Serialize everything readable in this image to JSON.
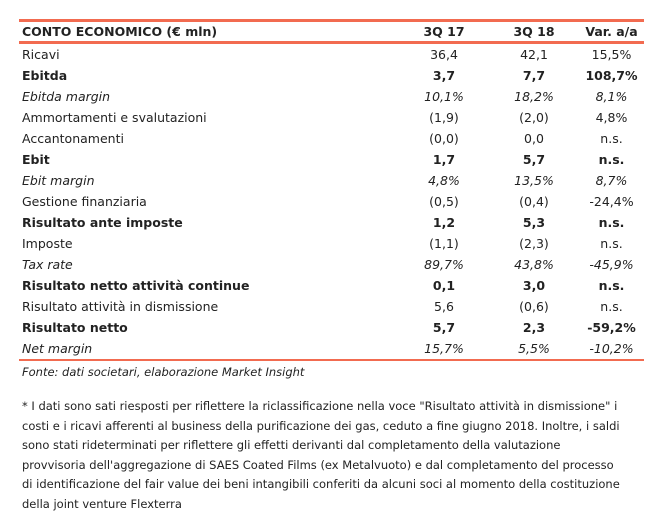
{
  "table": {
    "headers": [
      "CONTO ECONOMICO (€ mln)",
      "3Q 17",
      "3Q 18",
      "Var. a/a"
    ],
    "rows": [
      {
        "label": "Ricavi",
        "v1": "36,4",
        "v2": "42,1",
        "var": "15,5%",
        "style": "normal"
      },
      {
        "label": "Ebitda",
        "v1": "3,7",
        "v2": "7,7",
        "var": "108,7%",
        "style": "bold"
      },
      {
        "label": "Ebitda margin",
        "v1": "10,1%",
        "v2": "18,2%",
        "var": "8,1%",
        "style": "italic"
      },
      {
        "label": "Ammortamenti e svalutazioni",
        "v1": "(1,9)",
        "v2": "(2,0)",
        "var": "4,8%",
        "style": "normal"
      },
      {
        "label": "Accantonamenti",
        "v1": "(0,0)",
        "v2": "0,0",
        "var": "n.s.",
        "style": "normal"
      },
      {
        "label": "Ebit",
        "v1": "1,7",
        "v2": "5,7",
        "var": "n.s.",
        "style": "bold"
      },
      {
        "label": "Ebit margin",
        "v1": "4,8%",
        "v2": "13,5%",
        "var": "8,7%",
        "style": "italic"
      },
      {
        "label": "Gestione finanziaria",
        "v1": "(0,5)",
        "v2": "(0,4)",
        "var": "-24,4%",
        "style": "normal"
      },
      {
        "label": "Risultato ante imposte",
        "v1": "1,2",
        "v2": "5,3",
        "var": "n.s.",
        "style": "bold"
      },
      {
        "label": "Imposte",
        "v1": "(1,1)",
        "v2": "(2,3)",
        "var": "n.s.",
        "style": "normal"
      },
      {
        "label": "Tax rate",
        "v1": "89,7%",
        "v2": "43,8%",
        "var": "-45,9%",
        "style": "italic"
      },
      {
        "label": "Risultato netto attività continue",
        "v1": "0,1",
        "v2": "3,0",
        "var": "n.s.",
        "style": "bold"
      },
      {
        "label": "Risultato attività in dismissione",
        "v1": "5,6",
        "v2": "(0,6)",
        "var": "n.s.",
        "style": "normal"
      },
      {
        "label": "Risultato netto",
        "v1": "5,7",
        "v2": "2,3",
        "var": "-59,2%",
        "style": "bold"
      },
      {
        "label": "Net margin",
        "v1": "15,7%",
        "v2": "5,5%",
        "var": "-10,2%",
        "style": "italic"
      }
    ]
  },
  "source": "Fonte: dati societari, elaborazione Market Insight",
  "note": "* I dati sono sati riesposti per riflettere la riclassificazione nella voce \"Risultato attività in dismissione\" i costi e i ricavi afferenti al business della purificazione dei gas, ceduto a fine giugno 2018. Inoltre, i saldi sono stati rideterminati per  riflettere gli effetti derivanti dal completamento della valutazione provvisoria  dell'aggregazione di  SAES Coated Films (ex Metalvuoto) e dal completamento del processo di identificazione del fair value dei beni intangibili conferiti da alcuni soci al momento della costituzione della joint venture Flexterra",
  "colors": {
    "accent": "#f26b50",
    "text": "#222222"
  }
}
